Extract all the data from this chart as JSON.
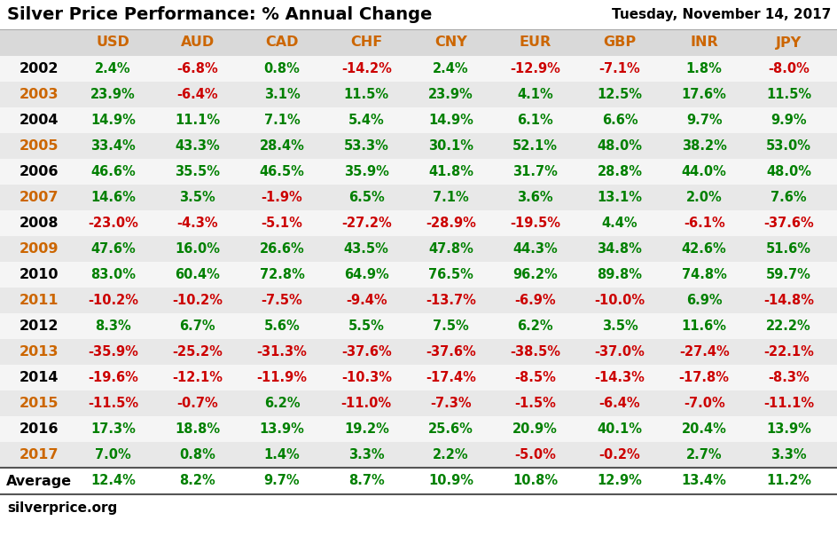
{
  "title": "Silver Price Performance: % Annual Change",
  "date_label": "Tuesday, November 14, 2017",
  "footer": "silverprice.org",
  "columns": [
    "USD",
    "AUD",
    "CAD",
    "CHF",
    "CNY",
    "EUR",
    "GBP",
    "INR",
    "JPY"
  ],
  "rows": [
    {
      "year": "2002",
      "odd": false,
      "values": [
        2.4,
        -6.8,
        0.8,
        -14.2,
        2.4,
        -12.9,
        -7.1,
        1.8,
        -8.0
      ]
    },
    {
      "year": "2003",
      "odd": true,
      "values": [
        23.9,
        -6.4,
        3.1,
        11.5,
        23.9,
        4.1,
        12.5,
        17.6,
        11.5
      ]
    },
    {
      "year": "2004",
      "odd": false,
      "values": [
        14.9,
        11.1,
        7.1,
        5.4,
        14.9,
        6.1,
        6.6,
        9.7,
        9.9
      ]
    },
    {
      "year": "2005",
      "odd": true,
      "values": [
        33.4,
        43.3,
        28.4,
        53.3,
        30.1,
        52.1,
        48.0,
        38.2,
        53.0
      ]
    },
    {
      "year": "2006",
      "odd": false,
      "values": [
        46.6,
        35.5,
        46.5,
        35.9,
        41.8,
        31.7,
        28.8,
        44.0,
        48.0
      ]
    },
    {
      "year": "2007",
      "odd": true,
      "values": [
        14.6,
        3.5,
        -1.9,
        6.5,
        7.1,
        3.6,
        13.1,
        2.0,
        7.6
      ]
    },
    {
      "year": "2008",
      "odd": false,
      "values": [
        -23.0,
        -4.3,
        -5.1,
        -27.2,
        -28.9,
        -19.5,
        4.4,
        -6.1,
        -37.6
      ]
    },
    {
      "year": "2009",
      "odd": true,
      "values": [
        47.6,
        16.0,
        26.6,
        43.5,
        47.8,
        44.3,
        34.8,
        42.6,
        51.6
      ]
    },
    {
      "year": "2010",
      "odd": false,
      "values": [
        83.0,
        60.4,
        72.8,
        64.9,
        76.5,
        96.2,
        89.8,
        74.8,
        59.7
      ]
    },
    {
      "year": "2011",
      "odd": true,
      "values": [
        -10.2,
        -10.2,
        -7.5,
        -9.4,
        -13.7,
        -6.9,
        -10.0,
        6.9,
        -14.8
      ]
    },
    {
      "year": "2012",
      "odd": false,
      "values": [
        8.3,
        6.7,
        5.6,
        5.5,
        7.5,
        6.2,
        3.5,
        11.6,
        22.2
      ]
    },
    {
      "year": "2013",
      "odd": true,
      "values": [
        -35.9,
        -25.2,
        -31.3,
        -37.6,
        -37.6,
        -38.5,
        -37.0,
        -27.4,
        -22.1
      ]
    },
    {
      "year": "2014",
      "odd": false,
      "values": [
        -19.6,
        -12.1,
        -11.9,
        -10.3,
        -17.4,
        -8.5,
        -14.3,
        -17.8,
        -8.3
      ]
    },
    {
      "year": "2015",
      "odd": true,
      "values": [
        -11.5,
        -0.7,
        6.2,
        -11.0,
        -7.3,
        -1.5,
        -6.4,
        -7.0,
        -11.1
      ]
    },
    {
      "year": "2016",
      "odd": false,
      "values": [
        17.3,
        18.8,
        13.9,
        19.2,
        25.6,
        20.9,
        40.1,
        20.4,
        13.9
      ]
    },
    {
      "year": "2017",
      "odd": true,
      "values": [
        7.0,
        0.8,
        1.4,
        3.3,
        2.2,
        -5.0,
        -0.2,
        2.7,
        3.3
      ]
    }
  ],
  "average": [
    12.4,
    8.2,
    9.7,
    8.7,
    10.9,
    10.8,
    12.9,
    13.4,
    11.2
  ],
  "color_positive": "#008000",
  "color_negative": "#cc0000",
  "color_orange": "#cc6600",
  "color_header_bg": "#d9d9d9",
  "color_odd_bg": "#e8e8e8",
  "color_even_bg": "#f5f5f5",
  "title_color": "#000000",
  "header_col_color": "#cc6600",
  "title_fontsize": 14,
  "date_fontsize": 11,
  "col_header_fontsize": 11.5,
  "year_fontsize": 11.5,
  "cell_fontsize": 10.5,
  "avg_fontsize": 11.5,
  "footer_fontsize": 11
}
